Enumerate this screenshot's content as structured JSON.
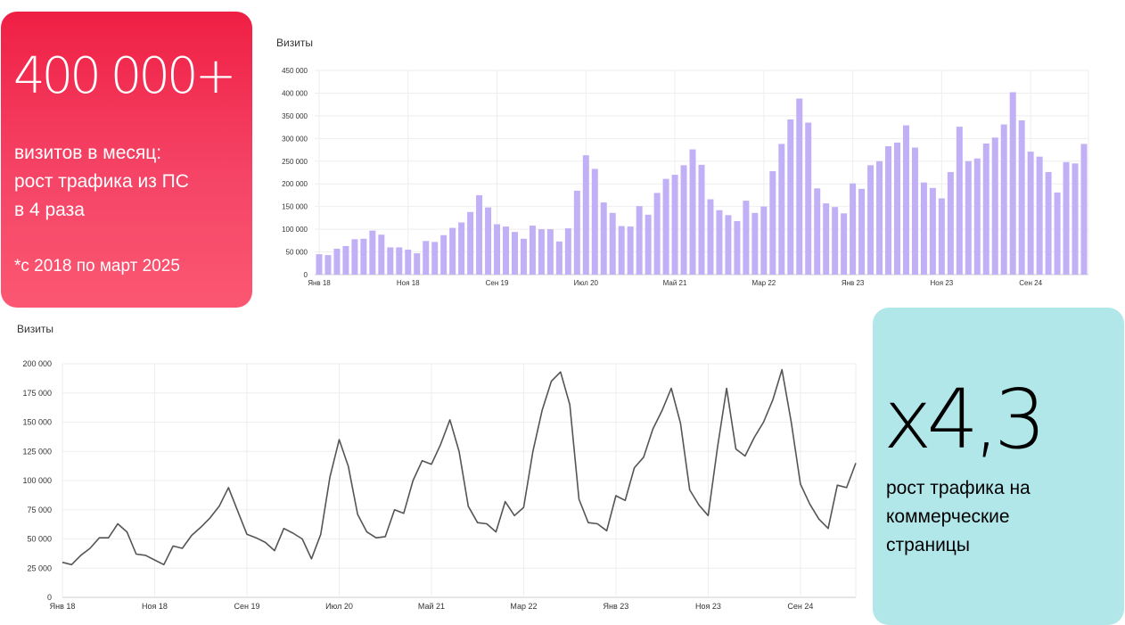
{
  "left_card": {
    "headline": "400 000+",
    "line1": "визитов в месяц:",
    "line2": "рост трафика из ПС",
    "line3": "в 4 раза",
    "note": "*с 2018 по март 2025",
    "bg_top": "#ef1f44",
    "bg_bottom": "#fb5772"
  },
  "right_card": {
    "headline": "х4,3",
    "line1": "рост трафика на",
    "line2": "коммерческие",
    "line3": "страницы",
    "bg": "#b2e7ea"
  },
  "chart_data": [
    {
      "type": "bar",
      "title": "Визиты",
      "color": "#c2b0f6",
      "x_tick_labels": [
        "Янв 18",
        "Ноя 18",
        "Сен 19",
        "Июл 20",
        "Май 21",
        "Мар 22",
        "Янв 23",
        "Ноя 23",
        "Сен 24"
      ],
      "y_tick_labels": [
        "0",
        "50 000",
        "100 000",
        "150 000",
        "200 000",
        "250 000",
        "300 000",
        "350 000",
        "400 000",
        "450 000"
      ],
      "ylim": [
        0,
        450000
      ],
      "grid": true,
      "values": [
        45000,
        43000,
        57000,
        63000,
        78000,
        79000,
        97000,
        88000,
        60000,
        60000,
        55000,
        47000,
        74000,
        72000,
        87000,
        103000,
        115000,
        138000,
        175000,
        148000,
        111000,
        106000,
        94000,
        79000,
        108000,
        100000,
        100000,
        73000,
        102000,
        185000,
        263000,
        233000,
        159000,
        136000,
        107000,
        106000,
        151000,
        132000,
        180000,
        211000,
        220000,
        241000,
        276000,
        242000,
        166000,
        142000,
        131000,
        118000,
        163000,
        136000,
        150000,
        228000,
        288000,
        342000,
        388000,
        335000,
        190000,
        157000,
        149000,
        135000,
        201000,
        189000,
        241000,
        250000,
        283000,
        291000,
        329000,
        280000,
        203000,
        191000,
        168000,
        226000,
        326000,
        250000,
        256000,
        289000,
        302000,
        331000,
        402000,
        340000,
        271000,
        260000,
        226000,
        181000,
        248000,
        245000,
        288000
      ]
    },
    {
      "type": "line",
      "title": "Визиты",
      "color": "#555555",
      "x_tick_labels": [
        "Янв 18",
        "Ноя 18",
        "Сен 19",
        "Июл 20",
        "Май 21",
        "Мар 22",
        "Янв 23",
        "Ноя 23",
        "Сен 24"
      ],
      "y_tick_labels": [
        "0",
        "25 000",
        "50 000",
        "75 000",
        "100 000",
        "125 000",
        "150 000",
        "175 000",
        "200 000"
      ],
      "ylim": [
        0,
        200000
      ],
      "grid": true,
      "values": [
        30000,
        28000,
        36000,
        42000,
        51000,
        51000,
        63000,
        56000,
        37000,
        36000,
        32000,
        28000,
        44000,
        42000,
        53000,
        60000,
        68000,
        78000,
        94000,
        74000,
        54000,
        51000,
        47000,
        40000,
        59000,
        55000,
        50000,
        33000,
        54000,
        103000,
        135000,
        112000,
        71000,
        56000,
        51000,
        52000,
        75000,
        72000,
        100000,
        117000,
        114000,
        131000,
        152000,
        125000,
        78000,
        64000,
        63000,
        56000,
        82000,
        70000,
        77000,
        125000,
        160000,
        185000,
        193000,
        165000,
        84000,
        64000,
        63000,
        57000,
        87000,
        83000,
        111000,
        120000,
        144000,
        160000,
        179000,
        149000,
        92000,
        79000,
        70000,
        128000,
        179000,
        127000,
        121000,
        137000,
        150000,
        169000,
        195000,
        150000,
        97000,
        80000,
        67000,
        59000,
        96000,
        94000,
        115000
      ]
    }
  ]
}
